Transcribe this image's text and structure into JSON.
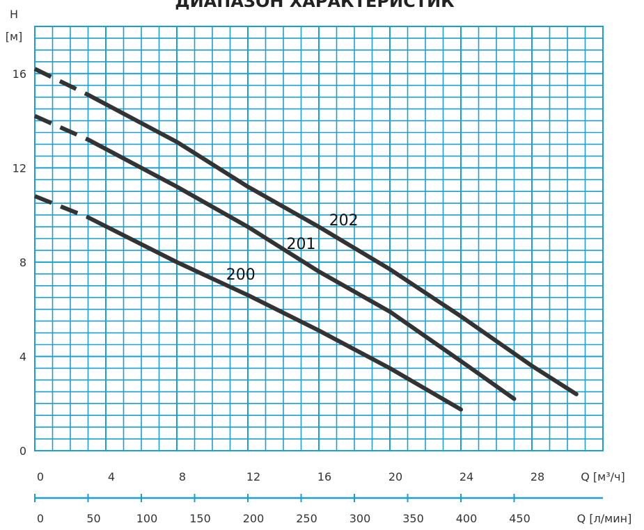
{
  "chart_data": {
    "type": "line",
    "title": "ДИАПАЗОН ХАРАКТЕРИСТИК",
    "y_axis": {
      "label": "H",
      "unit": "[м]",
      "range": [
        0,
        18
      ],
      "ticks": [
        0,
        4,
        8,
        12,
        16
      ]
    },
    "x_axis": {
      "label": "Q [м³/ч]",
      "range": [
        0,
        32
      ],
      "ticks": [
        0,
        4,
        8,
        12,
        16,
        20,
        24,
        28
      ]
    },
    "x_axis_secondary": {
      "label": "Q [л/мин]",
      "ticks": [
        0,
        50,
        100,
        150,
        200,
        250,
        300,
        350,
        400,
        450
      ]
    },
    "grid": true,
    "series": [
      {
        "name": "200",
        "values": [
          {
            "x": 0,
            "y": 10.8
          },
          {
            "x": 3,
            "y": 9.9
          },
          {
            "x": 8,
            "y": 8.0
          },
          {
            "x": 12,
            "y": 6.6
          },
          {
            "x": 16,
            "y": 5.1
          },
          {
            "x": 20,
            "y": 3.5
          },
          {
            "x": 24,
            "y": 1.75
          }
        ],
        "dashed_until_x": 3,
        "label_at": {
          "x": 11.6,
          "y": 7.5
        }
      },
      {
        "name": "201",
        "values": [
          {
            "x": 0,
            "y": 14.2
          },
          {
            "x": 3,
            "y": 13.2
          },
          {
            "x": 8,
            "y": 11.2
          },
          {
            "x": 12,
            "y": 9.5
          },
          {
            "x": 16,
            "y": 7.6
          },
          {
            "x": 20,
            "y": 5.9
          },
          {
            "x": 24,
            "y": 3.8
          },
          {
            "x": 27,
            "y": 2.2
          }
        ],
        "dashed_until_x": 3,
        "label_at": {
          "x": 15,
          "y": 8.8
        }
      },
      {
        "name": "202",
        "values": [
          {
            "x": 0,
            "y": 16.2
          },
          {
            "x": 3,
            "y": 15.1
          },
          {
            "x": 8,
            "y": 13.1
          },
          {
            "x": 12,
            "y": 11.2
          },
          {
            "x": 16,
            "y": 9.5
          },
          {
            "x": 20,
            "y": 7.7
          },
          {
            "x": 24,
            "y": 5.7
          },
          {
            "x": 28,
            "y": 3.6
          },
          {
            "x": 30.5,
            "y": 2.4
          }
        ],
        "dashed_until_x": 3,
        "label_at": {
          "x": 17.4,
          "y": 9.8
        }
      }
    ]
  },
  "colors": {
    "grid": "#1a9fd0",
    "curve": "#333333",
    "text": "#333333"
  }
}
